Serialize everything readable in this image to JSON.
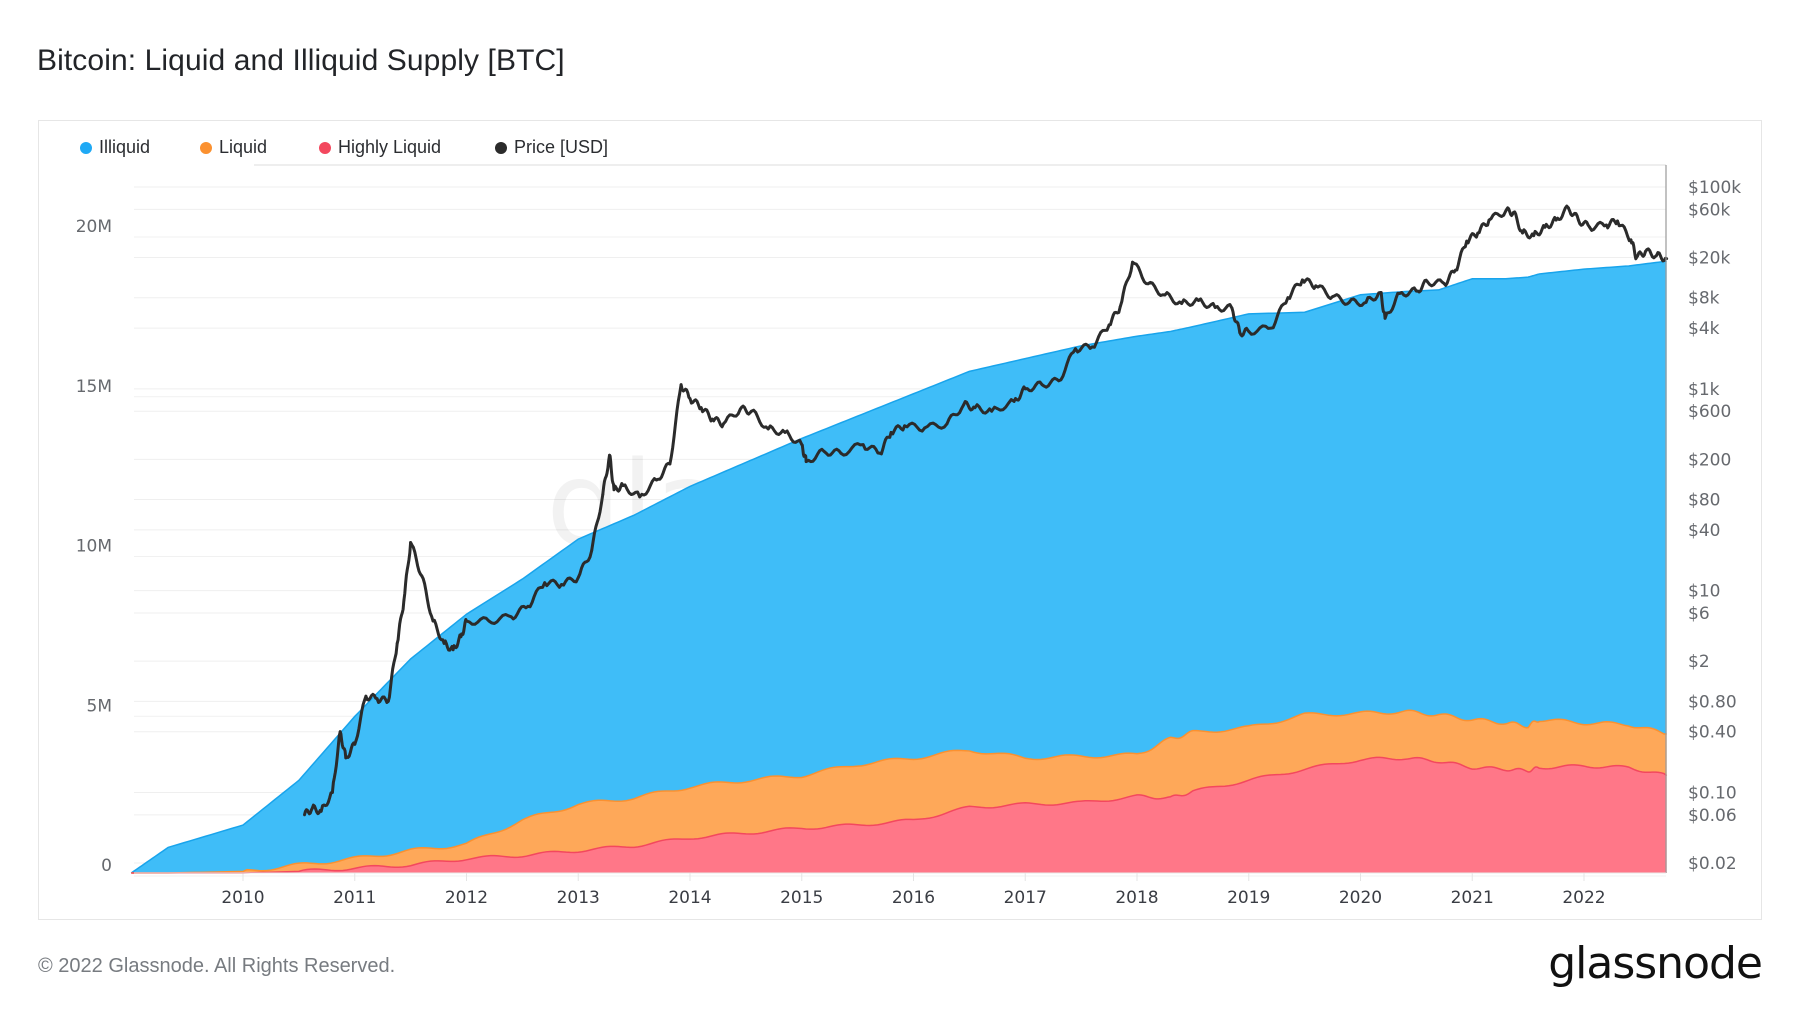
{
  "header": {
    "title": "Bitcoin: Liquid and Illiquid Supply [BTC]"
  },
  "legend": [
    {
      "label": "Illiquid",
      "color": "#1fa9f5"
    },
    {
      "label": "Liquid",
      "color": "#fb9130"
    },
    {
      "label": "Highly Liquid",
      "color": "#f3485e"
    },
    {
      "label": "Price [USD]",
      "color": "#2b2b2b"
    }
  ],
  "footer": {
    "copyright": "© 2022 Glassnode. All Rights Reserved.",
    "logo": "glassnode"
  },
  "watermark": "glassnode",
  "chart_data": {
    "type": "area",
    "title": "Bitcoin: Liquid and Illiquid Supply [BTC]",
    "stacked": true,
    "x_unit": "year",
    "xlim": [
      2009.0,
      2022.74
    ],
    "x_ticks": [
      "2010",
      "2011",
      "2012",
      "2013",
      "2014",
      "2015",
      "2016",
      "2017",
      "2018",
      "2019",
      "2020",
      "2021",
      "2022"
    ],
    "y_left": {
      "label": "",
      "ticks": [
        "0",
        "5M",
        "10M",
        "15M",
        "20M"
      ],
      "tick_values": [
        0,
        5,
        10,
        15,
        20
      ],
      "unit": "million BTC",
      "ylim": [
        0,
        22.5
      ]
    },
    "y_right": {
      "label": "Price [USD]",
      "scale": "log",
      "ticks": [
        "$0.02",
        "$0.06",
        "$0.10",
        "$0.40",
        "$0.80",
        "$2",
        "$6",
        "$10",
        "$40",
        "$80",
        "$200",
        "$600",
        "$1k",
        "$4k",
        "$8k",
        "$20k",
        "$60k",
        "$100k"
      ],
      "tick_values": [
        0.02,
        0.06,
        0.1,
        0.4,
        0.8,
        2,
        6,
        10,
        40,
        80,
        200,
        600,
        1000,
        4000,
        8000,
        20000,
        60000,
        100000
      ],
      "ylim": [
        0.02,
        100000
      ]
    },
    "grid": true,
    "legend_position": "top-left",
    "x": [
      2009.0,
      2009.33,
      2010.0,
      2010.5,
      2011.0,
      2011.5,
      2012.0,
      2012.5,
      2013.0,
      2013.5,
      2014.0,
      2014.5,
      2015.0,
      2015.5,
      2016.0,
      2016.5,
      2017.0,
      2017.5,
      2018.0,
      2018.3,
      2018.5,
      2019.0,
      2019.5,
      2020.0,
      2020.4,
      2020.7,
      2021.0,
      2021.3,
      2021.5,
      2021.6,
      2022.0,
      2022.4,
      2022.74
    ],
    "series": [
      {
        "name": "Highly Liquid",
        "unit": "million BTC",
        "values": [
          0,
          0,
          0.0,
          0.05,
          0.15,
          0.25,
          0.45,
          0.55,
          0.7,
          0.85,
          1.1,
          1.25,
          1.4,
          1.5,
          1.65,
          2.05,
          2.15,
          2.2,
          2.4,
          2.35,
          2.55,
          2.9,
          3.25,
          3.55,
          3.6,
          3.5,
          3.3,
          3.25,
          3.2,
          3.3,
          3.35,
          3.3,
          3.05
        ]
      },
      {
        "name": "Liquid",
        "unit": "million BTC",
        "values": [
          0,
          0,
          0.05,
          0.2,
          0.3,
          0.45,
          0.45,
          1.1,
          1.45,
          1.5,
          1.6,
          1.65,
          1.65,
          1.9,
          1.95,
          1.8,
          1.45,
          1.45,
          1.3,
          1.85,
          1.85,
          1.65,
          1.7,
          1.45,
          1.45,
          1.45,
          1.5,
          1.45,
          1.4,
          1.5,
          1.35,
          1.35,
          1.3
        ]
      },
      {
        "name": "Illiquid",
        "unit": "million BTC",
        "values": [
          0,
          0.8,
          1.45,
          2.65,
          4.45,
          6.0,
          7.2,
          7.55,
          8.3,
          8.85,
          9.4,
          9.95,
          10.55,
          10.9,
          11.4,
          11.85,
          12.5,
          12.85,
          13.1,
          12.75,
          12.7,
          12.95,
          12.6,
          13.1,
          13.15,
          13.3,
          13.8,
          13.9,
          14.05,
          13.95,
          14.2,
          14.35,
          14.8
        ]
      },
      {
        "name": "Price [USD]",
        "axis": "right",
        "type": "line",
        "x": [
          2010.55,
          2010.62,
          2010.7,
          2010.8,
          2010.87,
          2010.92,
          2011.0,
          2011.1,
          2011.2,
          2011.3,
          2011.38,
          2011.44,
          2011.5,
          2011.6,
          2011.7,
          2011.8,
          2011.88,
          2011.95,
          2012.0,
          2012.2,
          2012.4,
          2012.55,
          2012.7,
          2012.85,
          2013.0,
          2013.12,
          2013.22,
          2013.28,
          2013.32,
          2013.4,
          2013.55,
          2013.7,
          2013.82,
          2013.92,
          2014.0,
          2014.1,
          2014.2,
          2014.3,
          2014.45,
          2014.55,
          2014.7,
          2014.85,
          2015.0,
          2015.04,
          2015.2,
          2015.35,
          2015.55,
          2015.7,
          2015.8,
          2015.92,
          2016.1,
          2016.3,
          2016.45,
          2016.55,
          2016.7,
          2016.9,
          2017.0,
          2017.15,
          2017.3,
          2017.45,
          2017.6,
          2017.75,
          2017.85,
          2017.96,
          2018.1,
          2018.25,
          2018.4,
          2018.55,
          2018.7,
          2018.85,
          2018.92,
          2019.0,
          2019.2,
          2019.35,
          2019.48,
          2019.6,
          2019.75,
          2019.9,
          2020.05,
          2020.18,
          2020.22,
          2020.35,
          2020.5,
          2020.6,
          2020.75,
          2020.85,
          2020.95,
          2021.05,
          2021.15,
          2021.3,
          2021.37,
          2021.45,
          2021.55,
          2021.65,
          2021.75,
          2021.86,
          2021.95,
          2022.05,
          2022.2,
          2022.3,
          2022.42,
          2022.47,
          2022.55,
          2022.65,
          2022.74
        ],
        "values": [
          0.06,
          0.07,
          0.065,
          0.1,
          0.4,
          0.22,
          0.3,
          0.9,
          0.85,
          0.8,
          3,
          8,
          30,
          14,
          5,
          3,
          2.6,
          3.5,
          5,
          5,
          5.5,
          7,
          12,
          11.5,
          13.5,
          25,
          90,
          220,
          100,
          110,
          85,
          125,
          180,
          1100,
          800,
          650,
          500,
          450,
          630,
          600,
          400,
          370,
          280,
          190,
          240,
          230,
          280,
          230,
          370,
          430,
          410,
          450,
          700,
          650,
          600,
          750,
          1000,
          1100,
          1200,
          2500,
          2600,
          4300,
          6500,
          18000,
          11000,
          8500,
          7000,
          7500,
          6400,
          6300,
          3600,
          3700,
          4000,
          8000,
          12000,
          10500,
          8200,
          7200,
          7200,
          9000,
          5000,
          8800,
          9300,
          11500,
          11000,
          15000,
          29000,
          35000,
          47000,
          58000,
          56000,
          35000,
          33000,
          40000,
          47000,
          62000,
          47000,
          40000,
          42000,
          46000,
          30000,
          20000,
          23000,
          21000,
          19500
        ]
      }
    ]
  }
}
